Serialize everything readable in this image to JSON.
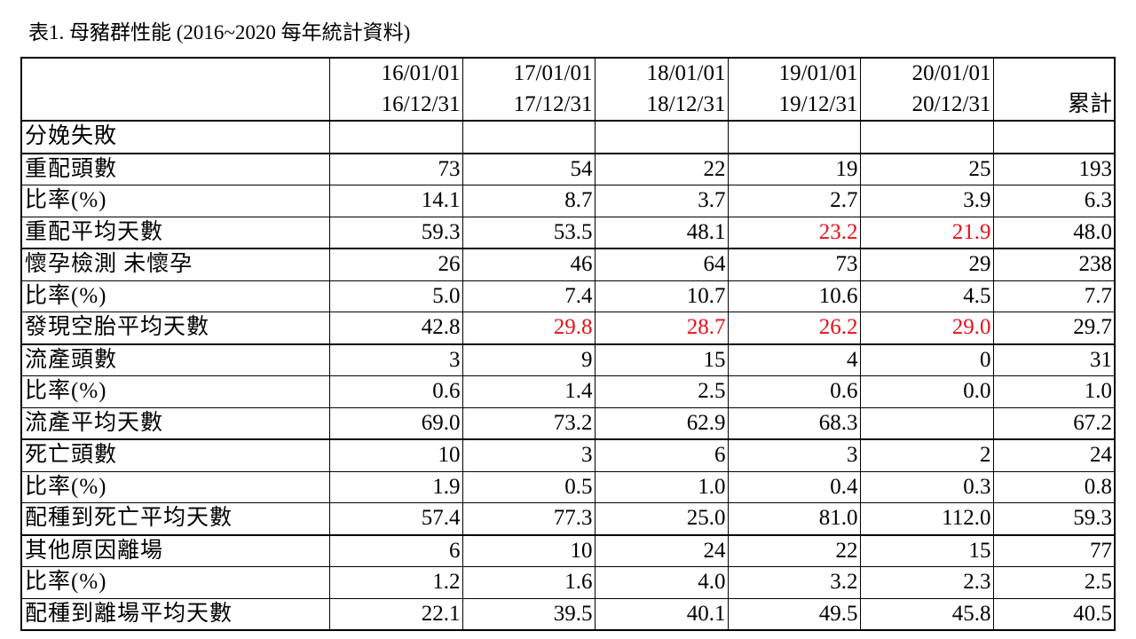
{
  "title": "表1. 母豬群性能 (2016~2020 每年統計資料)",
  "colors": {
    "highlight": "#e8101a"
  },
  "header": {
    "start": [
      "16/01/01",
      "17/01/01",
      "18/01/01",
      "19/01/01",
      "20/01/01",
      ""
    ],
    "end": [
      "16/12/31",
      "17/12/31",
      "18/12/31",
      "19/12/31",
      "20/12/31",
      "累計"
    ]
  },
  "rows": [
    {
      "label": "分娩失敗",
      "values": [
        "",
        "",
        "",
        "",
        "",
        ""
      ],
      "red": []
    },
    {
      "label": "重配頭數",
      "values": [
        "73",
        "54",
        "22",
        "19",
        "25",
        "193"
      ],
      "red": []
    },
    {
      "label": "比率(%)",
      "values": [
        "14.1",
        "8.7",
        "3.7",
        "2.7",
        "3.9",
        "6.3"
      ],
      "red": []
    },
    {
      "label": "重配平均天數",
      "values": [
        "59.3",
        "53.5",
        "48.1",
        "23.2",
        "21.9",
        "48.0"
      ],
      "red": [
        3,
        4
      ]
    },
    {
      "label": "懷孕檢測 未懷孕",
      "values": [
        "26",
        "46",
        "64",
        "73",
        "29",
        "238"
      ],
      "red": []
    },
    {
      "label": "比率(%)",
      "values": [
        "5.0",
        "7.4",
        "10.7",
        "10.6",
        "4.5",
        "7.7"
      ],
      "red": []
    },
    {
      "label": "發現空胎平均天數",
      "values": [
        "42.8",
        "29.8",
        "28.7",
        "26.2",
        "29.0",
        "29.7"
      ],
      "red": [
        1,
        2,
        3,
        4
      ]
    },
    {
      "label": "流產頭數",
      "values": [
        "3",
        "9",
        "15",
        "4",
        "0",
        "31"
      ],
      "red": []
    },
    {
      "label": "比率(%)",
      "values": [
        "0.6",
        "1.4",
        "2.5",
        "0.6",
        "0.0",
        "1.0"
      ],
      "red": []
    },
    {
      "label": "流產平均天數",
      "values": [
        "69.0",
        "73.2",
        "62.9",
        "68.3",
        "",
        "67.2"
      ],
      "red": []
    },
    {
      "label": "死亡頭數",
      "values": [
        "10",
        "3",
        "6",
        "3",
        "2",
        "24"
      ],
      "red": []
    },
    {
      "label": "比率(%)",
      "values": [
        "1.9",
        "0.5",
        "1.0",
        "0.4",
        "0.3",
        "0.8"
      ],
      "red": []
    },
    {
      "label": "配種到死亡平均天數",
      "values": [
        "57.4",
        "77.3",
        "25.0",
        "81.0",
        "112.0",
        "59.3"
      ],
      "red": []
    },
    {
      "label": "其他原因離場",
      "values": [
        "6",
        "10",
        "24",
        "22",
        "15",
        "77"
      ],
      "red": []
    },
    {
      "label": "比率(%)",
      "values": [
        "1.2",
        "1.6",
        "4.0",
        "3.2",
        "2.3",
        "2.5"
      ],
      "red": []
    },
    {
      "label": "配種到離場平均天數",
      "values": [
        "22.1",
        "39.5",
        "40.1",
        "49.5",
        "45.8",
        "40.5"
      ],
      "red": []
    }
  ]
}
